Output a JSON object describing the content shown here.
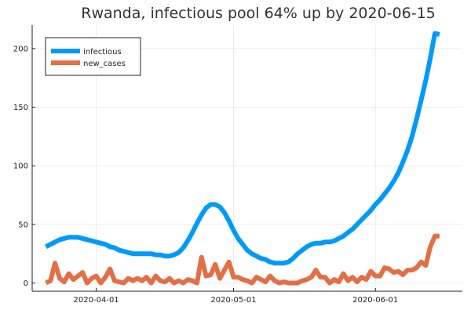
{
  "chart_data": {
    "type": "line",
    "title": "Rwanda, infectious pool 64% up by 2020-06-15",
    "xlabel": "",
    "ylabel": "",
    "x_dates": [
      "2020-03-21",
      "2020-03-22",
      "2020-03-23",
      "2020-03-24",
      "2020-03-25",
      "2020-03-26",
      "2020-03-27",
      "2020-03-28",
      "2020-03-29",
      "2020-03-30",
      "2020-03-31",
      "2020-04-01",
      "2020-04-02",
      "2020-04-03",
      "2020-04-04",
      "2020-04-05",
      "2020-04-06",
      "2020-04-07",
      "2020-04-08",
      "2020-04-09",
      "2020-04-10",
      "2020-04-11",
      "2020-04-12",
      "2020-04-13",
      "2020-04-14",
      "2020-04-15",
      "2020-04-16",
      "2020-04-17",
      "2020-04-18",
      "2020-04-19",
      "2020-04-20",
      "2020-04-21",
      "2020-04-22",
      "2020-04-23",
      "2020-04-24",
      "2020-04-25",
      "2020-04-26",
      "2020-04-27",
      "2020-04-28",
      "2020-04-29",
      "2020-04-30",
      "2020-05-01",
      "2020-05-02",
      "2020-05-03",
      "2020-05-04",
      "2020-05-05",
      "2020-05-06",
      "2020-05-07",
      "2020-05-08",
      "2020-05-09",
      "2020-05-10",
      "2020-05-11",
      "2020-05-12",
      "2020-05-13",
      "2020-05-14",
      "2020-05-15",
      "2020-05-16",
      "2020-05-17",
      "2020-05-18",
      "2020-05-19",
      "2020-05-20",
      "2020-05-21",
      "2020-05-22",
      "2020-05-23",
      "2020-05-24",
      "2020-05-25",
      "2020-05-26",
      "2020-05-27",
      "2020-05-28",
      "2020-05-29",
      "2020-05-30",
      "2020-05-31",
      "2020-06-01",
      "2020-06-02",
      "2020-06-03",
      "2020-06-04",
      "2020-06-05",
      "2020-06-06",
      "2020-06-07",
      "2020-06-08",
      "2020-06-09",
      "2020-06-10",
      "2020-06-11",
      "2020-06-12",
      "2020-06-13",
      "2020-06-14",
      "2020-06-15"
    ],
    "series": [
      {
        "name": "infectious",
        "color": "#009AFA",
        "values": [
          31,
          33,
          35,
          37,
          38,
          39,
          39,
          39,
          38,
          37,
          36,
          35,
          34,
          33,
          31,
          30,
          28,
          27,
          26,
          25,
          25,
          25,
          25,
          25,
          24,
          24,
          23,
          23,
          24,
          26,
          30,
          36,
          43,
          51,
          58,
          64,
          67,
          67,
          65,
          60,
          53,
          45,
          38,
          33,
          28,
          25,
          23,
          21,
          20,
          18,
          17,
          17,
          17,
          18,
          21,
          25,
          28,
          31,
          33,
          34,
          34,
          35,
          35,
          36,
          38,
          40,
          43,
          46,
          50,
          54,
          58,
          62,
          67,
          71,
          76,
          81,
          87,
          94,
          103,
          113,
          125,
          140,
          156,
          173,
          192,
          213,
          212
        ]
      },
      {
        "name": "new_cases",
        "color": "#E26F46",
        "values": [
          0,
          2,
          17,
          4,
          1,
          8,
          3,
          6,
          9,
          0,
          4,
          6,
          0,
          5,
          12,
          2,
          1,
          0,
          4,
          2,
          4,
          2,
          5,
          0,
          6,
          2,
          1,
          4,
          0,
          2,
          0,
          3,
          2,
          0,
          22,
          6,
          7,
          16,
          4,
          11,
          18,
          5,
          5,
          3,
          2,
          0,
          5,
          3,
          1,
          6,
          2,
          0,
          1,
          0,
          0,
          0,
          2,
          3,
          5,
          11,
          5,
          5,
          0,
          3,
          1,
          8,
          2,
          5,
          1,
          5,
          3,
          10,
          6,
          6,
          13,
          12,
          9,
          10,
          7,
          11,
          11,
          13,
          18,
          15,
          31,
          40,
          40
        ]
      }
    ],
    "x_ticks": [
      "2020-04-01",
      "2020-05-01",
      "2020-06-01"
    ],
    "y_ticks": [
      "0",
      "50",
      "100",
      "150",
      "200"
    ],
    "y_tick_values": [
      0,
      50,
      100,
      150,
      200
    ],
    "ylim": [
      -7,
      220
    ],
    "xlim": [
      "2020-03-18",
      "2020-06-20"
    ],
    "grid": true,
    "legend_position": "top-left"
  }
}
